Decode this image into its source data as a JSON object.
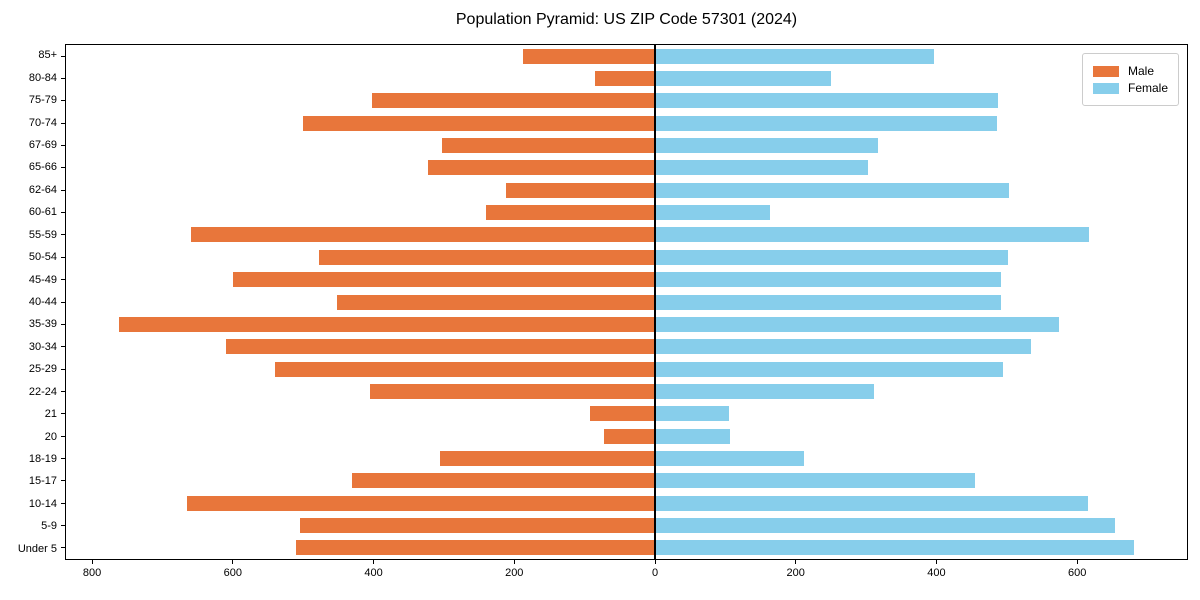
{
  "title": "Population Pyramid: US ZIP Code 57301 (2024)",
  "colors": {
    "male": "#e8763b",
    "female": "#87ceeb",
    "axis": "#000000",
    "legend_border": "#cccccc",
    "background": "#ffffff"
  },
  "legend": {
    "position": "upper-right",
    "items": [
      {
        "label": "Male",
        "color": "#e8763b"
      },
      {
        "label": "Female",
        "color": "#87ceeb"
      }
    ]
  },
  "chart_data": {
    "type": "bar",
    "subtype": "population-pyramid-horizontal",
    "title": "Population Pyramid: US ZIP Code 57301 (2024)",
    "xlabel": "",
    "ylabel": "",
    "grid": false,
    "legend_position": "upper right",
    "categories_top_to_bottom": [
      "85+",
      "80-84",
      "75-79",
      "70-74",
      "67-69",
      "65-66",
      "62-64",
      "60-61",
      "55-59",
      "50-54",
      "45-49",
      "40-44",
      "35-39",
      "30-34",
      "25-29",
      "22-24",
      "21",
      "20",
      "18-19",
      "15-17",
      "10-14",
      "5-9",
      "Under 5"
    ],
    "series": [
      {
        "name": "Male",
        "side": "left",
        "color": "#e8763b",
        "values": [
          187,
          85,
          402,
          500,
          303,
          322,
          212,
          240,
          660,
          478,
          600,
          452,
          762,
          610,
          540,
          405,
          92,
          72,
          305,
          430,
          665,
          505,
          510
        ]
      },
      {
        "name": "Female",
        "side": "right",
        "color": "#87ceeb",
        "values": [
          396,
          250,
          488,
          486,
          317,
          303,
          503,
          163,
          617,
          501,
          491,
          492,
          574,
          534,
          494,
          311,
          105,
          106,
          212,
          455,
          616,
          654,
          681
        ]
      }
    ],
    "x_ticks": [
      -800,
      -600,
      -400,
      -200,
      0,
      200,
      400,
      600
    ],
    "x_tick_labels": [
      "800",
      "600",
      "400",
      "200",
      "0",
      "200",
      "400",
      "600"
    ],
    "xlim": [
      -837,
      756
    ]
  }
}
